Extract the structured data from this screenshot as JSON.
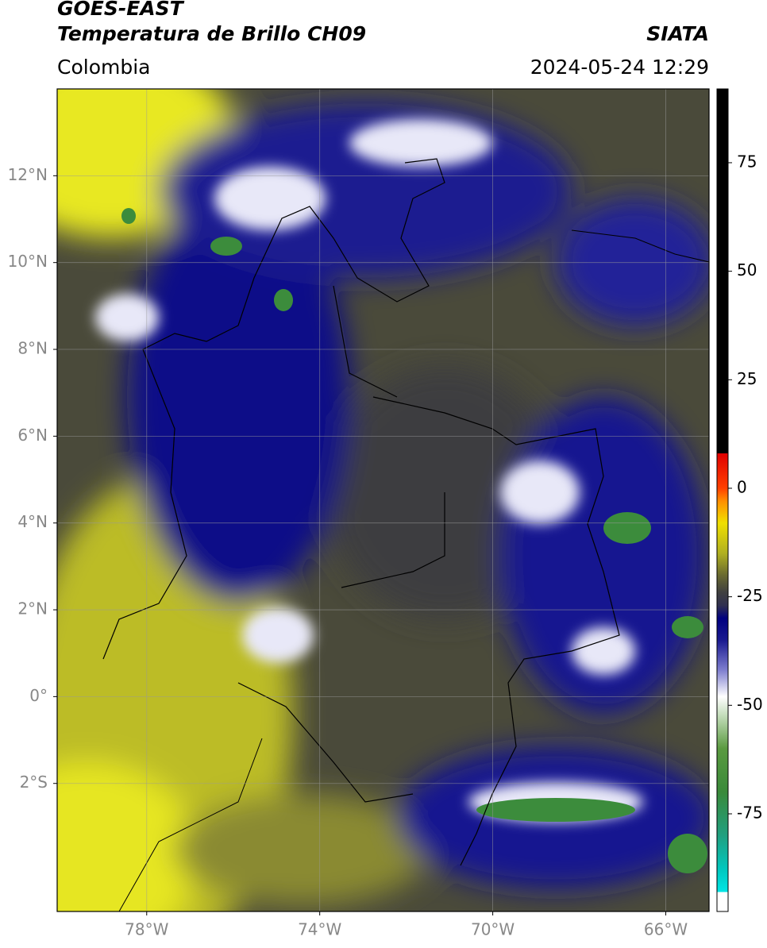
{
  "header": {
    "title": "GOES-EAST",
    "subtitle": "Temperatura de Brillo CH09",
    "region": "Colombia",
    "source": "SIATA",
    "datetime": "2024-05-24 12:29"
  },
  "map": {
    "lonlim": [
      -80.07,
      -65
    ],
    "latlim": [
      -4.95,
      14
    ],
    "xticks": [
      {
        "value": -78,
        "label": "78°W"
      },
      {
        "value": -74,
        "label": "74°W"
      },
      {
        "value": -70,
        "label": "70°W"
      },
      {
        "value": -66,
        "label": "66°W"
      }
    ],
    "yticks": [
      {
        "value": -2,
        "label": "2°S"
      },
      {
        "value": 0,
        "label": "0°"
      },
      {
        "value": 2,
        "label": "2°N"
      },
      {
        "value": 4,
        "label": "4°N"
      },
      {
        "value": 6,
        "label": "6°N"
      },
      {
        "value": 8,
        "label": "8°N"
      },
      {
        "value": 10,
        "label": "10°N"
      },
      {
        "value": 12,
        "label": "12°N"
      }
    ],
    "grid": true
  },
  "colorbar": {
    "lim": [
      -97.5,
      92
    ],
    "ticks": [
      -75,
      -50,
      -25,
      0,
      25,
      50,
      75
    ],
    "stops": [
      [
        -97.5,
        "#ffffff"
      ],
      [
        -93,
        "#ffffff"
      ],
      [
        -93,
        "#00e5e5"
      ],
      [
        -88,
        "#00c8c0"
      ],
      [
        -80,
        "#20a080"
      ],
      [
        -70,
        "#3a8a3a"
      ],
      [
        -60,
        "#5a9a40"
      ],
      [
        -52,
        "#c8e0c0"
      ],
      [
        -48,
        "#ffffff"
      ],
      [
        -42,
        "#8080d0"
      ],
      [
        -35,
        "#1a1a90"
      ],
      [
        -30,
        "#000080"
      ],
      [
        -27,
        "#303050"
      ],
      [
        -24,
        "#404040"
      ],
      [
        -20,
        "#6a6a30"
      ],
      [
        -15,
        "#b0b020"
      ],
      [
        -8,
        "#f0e000"
      ],
      [
        -3,
        "#ff9000"
      ],
      [
        0,
        "#ff4000"
      ],
      [
        8,
        "#e00000"
      ],
      [
        8,
        "#000000"
      ],
      [
        92,
        "#000000"
      ]
    ]
  }
}
